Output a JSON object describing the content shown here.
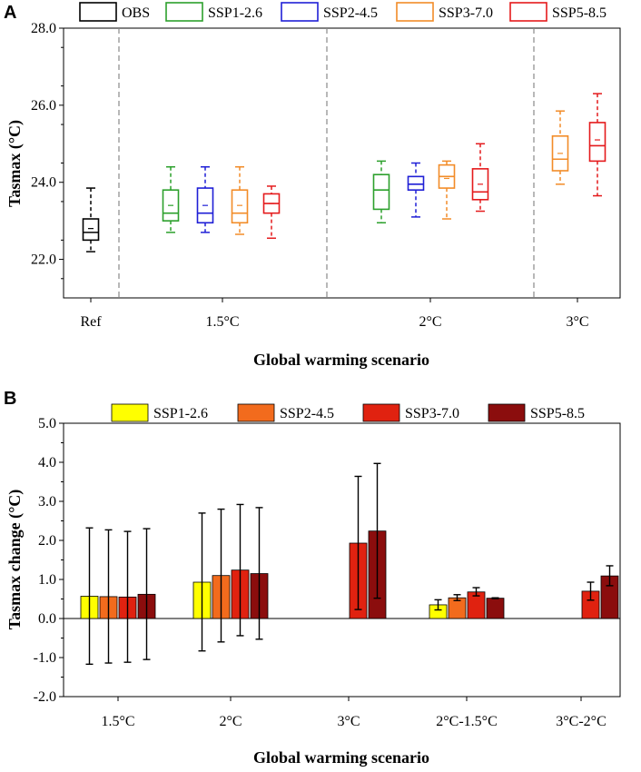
{
  "chart_data": [
    {
      "panel": "A",
      "type": "box",
      "ylabel": "Tasmax (°C)",
      "xlabel": "Global warming scenario",
      "ylim": [
        21.0,
        28.0
      ],
      "yticks": [
        "22.0",
        "24.0",
        "26.0",
        "28.0"
      ],
      "yticks_values": [
        22,
        24,
        26,
        28
      ],
      "groups": [
        "Ref",
        "1.5°C",
        "2°C",
        "3°C"
      ],
      "legend": [
        {
          "name": "OBS",
          "color": "#000000"
        },
        {
          "name": "SSP1-2.6",
          "color": "#2ca02c"
        },
        {
          "name": "SSP2-4.5",
          "color": "#1f1fd6"
        },
        {
          "name": "SSP3-7.0",
          "color": "#f28c28"
        },
        {
          "name": "SSP5-8.5",
          "color": "#e41a1c"
        }
      ],
      "boxes": [
        {
          "group": "Ref",
          "series": "OBS",
          "whisker_low": 22.2,
          "q1": 22.5,
          "median": 22.7,
          "mean": 22.8,
          "q3": 23.05,
          "whisker_high": 23.85
        },
        {
          "group": "1.5°C",
          "series": "SSP1-2.6",
          "whisker_low": 22.7,
          "q1": 23.0,
          "median": 23.2,
          "mean": 23.4,
          "q3": 23.8,
          "whisker_high": 24.4
        },
        {
          "group": "1.5°C",
          "series": "SSP2-4.5",
          "whisker_low": 22.7,
          "q1": 22.95,
          "median": 23.2,
          "mean": 23.4,
          "q3": 23.85,
          "whisker_high": 24.4
        },
        {
          "group": "1.5°C",
          "series": "SSP3-7.0",
          "whisker_low": 22.65,
          "q1": 22.95,
          "median": 23.2,
          "mean": 23.4,
          "q3": 23.8,
          "whisker_high": 24.4
        },
        {
          "group": "1.5°C",
          "series": "SSP5-8.5",
          "whisker_low": 22.55,
          "q1": 23.2,
          "median": 23.45,
          "mean": 23.45,
          "q3": 23.7,
          "whisker_high": 23.9
        },
        {
          "group": "2°C",
          "series": "SSP1-2.6",
          "whisker_low": 22.95,
          "q1": 23.3,
          "median": 23.8,
          "mean": 23.8,
          "q3": 24.2,
          "whisker_high": 24.55
        },
        {
          "group": "2°C",
          "series": "SSP2-4.5",
          "whisker_low": 23.1,
          "q1": 23.8,
          "median": 23.95,
          "mean": 23.95,
          "q3": 24.15,
          "whisker_high": 24.5
        },
        {
          "group": "2°C",
          "series": "SSP3-7.0",
          "whisker_low": 23.05,
          "q1": 23.85,
          "median": 24.15,
          "mean": 24.1,
          "q3": 24.45,
          "whisker_high": 24.55
        },
        {
          "group": "2°C",
          "series": "SSP5-8.5",
          "whisker_low": 23.25,
          "q1": 23.55,
          "median": 23.75,
          "mean": 23.95,
          "q3": 24.35,
          "whisker_high": 25.0
        },
        {
          "group": "3°C",
          "series": "SSP3-7.0",
          "whisker_low": 23.95,
          "q1": 24.3,
          "median": 24.6,
          "mean": 24.75,
          "q3": 25.2,
          "whisker_high": 25.85
        },
        {
          "group": "3°C",
          "series": "SSP5-8.5",
          "whisker_low": 23.65,
          "q1": 24.55,
          "median": 24.95,
          "mean": 25.1,
          "q3": 25.55,
          "whisker_high": 26.3
        }
      ]
    },
    {
      "panel": "B",
      "type": "bar",
      "ylabel": "Tasmax change (°C)",
      "xlabel": "Global warming scenario",
      "ylim": [
        -2.0,
        5.0
      ],
      "yticks": [
        "-2.0",
        "-1.0",
        "0.0",
        "1.0",
        "2.0",
        "3.0",
        "4.0",
        "5.0"
      ],
      "yticks_values": [
        -2,
        -1,
        0,
        1,
        2,
        3,
        4,
        5
      ],
      "categories": [
        "1.5°C",
        "2°C",
        "3°C",
        "2°C-1.5°C",
        "3°C-2°C"
      ],
      "series": [
        {
          "name": "SSP1-2.6",
          "color": "#ffff00",
          "values": [
            0.57,
            0.93,
            null,
            0.35,
            null
          ],
          "err_low": [
            -1.17,
            -0.83,
            null,
            0.22,
            null
          ],
          "err_high": [
            2.32,
            2.7,
            null,
            0.48,
            null
          ]
        },
        {
          "name": "SSP2-4.5",
          "color": "#f26b1d",
          "values": [
            0.56,
            1.1,
            null,
            0.53,
            null
          ],
          "err_low": [
            -1.14,
            -0.6,
            null,
            0.46,
            null
          ],
          "err_high": [
            2.27,
            2.8,
            null,
            0.61,
            null
          ]
        },
        {
          "name": "SSP3-7.0",
          "color": "#e02210",
          "values": [
            0.55,
            1.24,
            1.93,
            0.68,
            0.7
          ],
          "err_low": [
            -1.12,
            -0.44,
            0.23,
            0.58,
            0.47
          ],
          "err_high": [
            2.23,
            2.92,
            3.64,
            0.79,
            0.93
          ]
        },
        {
          "name": "SSP5-8.5",
          "color": "#8b0d0d",
          "values": [
            0.62,
            1.15,
            2.24,
            0.52,
            1.09
          ],
          "err_low": [
            -1.05,
            -0.53,
            0.52,
            0.51,
            0.84
          ],
          "err_high": [
            2.3,
            2.84,
            3.97,
            0.53,
            1.35
          ]
        }
      ]
    }
  ]
}
